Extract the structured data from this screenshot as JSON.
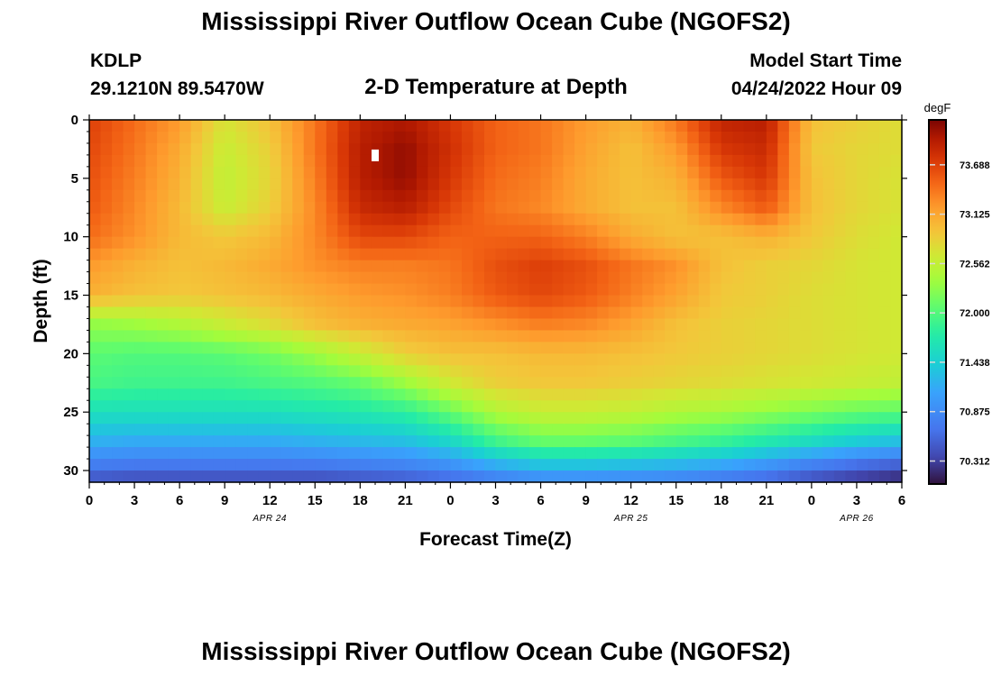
{
  "header": {
    "title": "Mississippi River Outflow Ocean Cube (NGOFS2)",
    "station_id": "KDLP",
    "station_coords": "29.1210N  89.5470W",
    "subtitle": "2-D Temperature at Depth",
    "model_start_label": "Model Start Time",
    "model_start_value": "04/24/2022 Hour 09"
  },
  "footer": {
    "title_repeat": "Mississippi River Outflow Ocean Cube (NGOFS2)"
  },
  "chart_data": {
    "type": "heatmap",
    "title": "2-D Temperature at Depth",
    "xlabel": "Forecast Time(Z)",
    "ylabel": "Depth (ft)",
    "x_tick_labels": [
      "0",
      "3",
      "6",
      "9",
      "12",
      "15",
      "18",
      "21",
      "0",
      "3",
      "6",
      "9",
      "12",
      "15",
      "18",
      "21",
      "0",
      "3",
      "6"
    ],
    "x_tick_hours": [
      0,
      3,
      6,
      9,
      12,
      15,
      18,
      21,
      24,
      27,
      30,
      33,
      36,
      39,
      42,
      45,
      48,
      51,
      54
    ],
    "date_labels": [
      {
        "label": "APR 24",
        "hour": 12
      },
      {
        "label": "APR 25",
        "hour": 36
      },
      {
        "label": "APR 26",
        "hour": 51
      }
    ],
    "xlim": [
      0,
      54
    ],
    "ylim": [
      0,
      31
    ],
    "y_ticks": [
      0,
      5,
      10,
      15,
      20,
      25,
      30
    ],
    "y_tick_labels": [
      "0",
      "5",
      "10",
      "15",
      "20",
      "25",
      "30"
    ],
    "y_inverted": true,
    "colorbar": {
      "unit_label": "degF",
      "ticks": [
        73.688,
        73.125,
        72.562,
        72.0,
        71.438,
        70.875,
        70.312
      ],
      "tick_labels": [
        "73.688",
        "73.125",
        "72.562",
        "72.000",
        "71.438",
        "70.875",
        "70.312"
      ],
      "vmin": 70.05,
      "vmax": 74.2,
      "colormap": "turbo"
    },
    "field": {
      "hours": [
        0,
        3,
        6,
        9,
        12,
        15,
        18,
        21,
        24,
        27,
        30,
        33,
        36,
        39,
        42,
        45,
        48,
        51,
        54
      ],
      "depths": [
        0,
        2.5,
        5,
        7.5,
        10,
        12.5,
        15,
        17.5,
        20,
        22.5,
        25,
        27.5,
        30,
        31
      ],
      "values": [
        [
          73.7,
          73.45,
          73.2,
          72.7,
          72.95,
          73.4,
          73.9,
          74.0,
          73.75,
          73.5,
          73.4,
          73.2,
          73.05,
          73.4,
          73.9,
          73.95,
          72.95,
          72.85,
          72.75
        ],
        [
          73.65,
          73.4,
          73.1,
          72.6,
          72.85,
          73.4,
          73.95,
          74.1,
          73.8,
          73.5,
          73.4,
          73.15,
          72.95,
          73.2,
          73.75,
          73.85,
          72.9,
          72.8,
          72.75
        ],
        [
          73.6,
          73.35,
          73.05,
          72.55,
          72.8,
          73.35,
          73.95,
          74.1,
          73.75,
          73.45,
          73.35,
          73.1,
          72.95,
          73.05,
          73.55,
          73.75,
          72.95,
          72.8,
          72.7
        ],
        [
          73.55,
          73.3,
          73.0,
          72.6,
          72.85,
          73.3,
          73.85,
          73.95,
          73.65,
          73.4,
          73.3,
          73.1,
          72.95,
          72.95,
          73.3,
          73.55,
          72.95,
          72.8,
          72.7
        ],
        [
          73.45,
          73.25,
          73.0,
          72.9,
          73.0,
          73.3,
          73.65,
          73.65,
          73.5,
          73.5,
          73.5,
          73.35,
          73.1,
          72.95,
          72.95,
          73.05,
          72.9,
          72.75,
          72.65
        ],
        [
          73.2,
          73.05,
          72.95,
          73.0,
          73.1,
          73.25,
          73.35,
          73.35,
          73.4,
          73.6,
          73.7,
          73.6,
          73.4,
          73.25,
          72.95,
          72.85,
          72.8,
          72.7,
          72.65
        ],
        [
          73.05,
          72.95,
          72.9,
          72.95,
          73.0,
          73.1,
          73.2,
          73.25,
          73.35,
          73.55,
          73.65,
          73.55,
          73.35,
          73.15,
          72.9,
          72.85,
          72.75,
          72.7,
          72.65
        ],
        [
          72.3,
          72.35,
          72.45,
          72.6,
          72.75,
          72.95,
          73.05,
          73.1,
          73.15,
          73.25,
          73.35,
          73.3,
          73.15,
          72.95,
          72.85,
          72.8,
          72.75,
          72.7,
          72.65
        ],
        [
          72.05,
          72.0,
          72.0,
          72.05,
          72.15,
          72.35,
          72.6,
          72.85,
          72.95,
          72.95,
          73.0,
          73.0,
          72.95,
          72.9,
          72.85,
          72.8,
          72.75,
          72.7,
          72.65
        ],
        [
          71.95,
          71.9,
          71.9,
          71.9,
          71.95,
          72.0,
          72.1,
          72.35,
          72.65,
          72.85,
          72.9,
          72.9,
          72.85,
          72.8,
          72.75,
          72.7,
          72.65,
          72.6,
          72.55
        ],
        [
          71.6,
          71.6,
          71.6,
          71.6,
          71.6,
          71.65,
          71.7,
          71.8,
          72.1,
          72.45,
          72.6,
          72.6,
          72.55,
          72.45,
          72.4,
          72.3,
          72.2,
          72.1,
          72.05
        ],
        [
          71.2,
          71.15,
          71.15,
          71.15,
          71.15,
          71.2,
          71.25,
          71.3,
          71.5,
          71.9,
          72.1,
          72.1,
          72.05,
          71.95,
          71.85,
          71.7,
          71.55,
          71.4,
          71.3
        ],
        [
          70.65,
          70.6,
          70.6,
          70.6,
          70.6,
          70.6,
          70.65,
          70.7,
          70.8,
          71.0,
          71.15,
          71.15,
          71.1,
          71.05,
          70.95,
          70.8,
          70.6,
          70.45,
          70.35
        ],
        [
          70.4,
          70.35,
          70.35,
          70.35,
          70.35,
          70.35,
          70.4,
          70.45,
          70.55,
          70.7,
          70.8,
          70.8,
          70.8,
          70.75,
          70.65,
          70.55,
          70.4,
          70.25,
          70.15
        ]
      ]
    },
    "marker": {
      "hour": 19,
      "depth": 3
    }
  }
}
